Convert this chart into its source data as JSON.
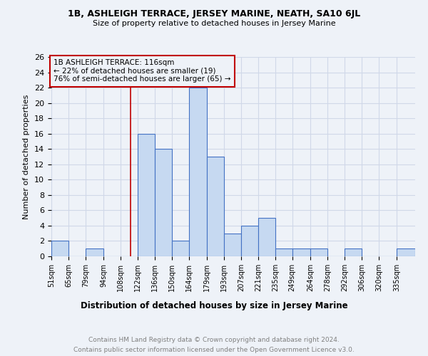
{
  "title": "1B, ASHLEIGH TERRACE, JERSEY MARINE, NEATH, SA10 6JL",
  "subtitle": "Size of property relative to detached houses in Jersey Marine",
  "xlabel": "Distribution of detached houses by size in Jersey Marine",
  "ylabel": "Number of detached properties",
  "footer1": "Contains HM Land Registry data © Crown copyright and database right 2024.",
  "footer2": "Contains public sector information licensed under the Open Government Licence v3.0.",
  "annotation_line1": "1B ASHLEIGH TERRACE: 116sqm",
  "annotation_line2": "← 22% of detached houses are smaller (19)",
  "annotation_line3": "76% of semi-detached houses are larger (65) →",
  "property_size": 116,
  "bin_labels": [
    "51sqm",
    "65sqm",
    "79sqm",
    "94sqm",
    "108sqm",
    "122sqm",
    "136sqm",
    "150sqm",
    "164sqm",
    "179sqm",
    "193sqm",
    "207sqm",
    "221sqm",
    "235sqm",
    "249sqm",
    "264sqm",
    "278sqm",
    "292sqm",
    "306sqm",
    "320sqm",
    "335sqm"
  ],
  "bin_edges": [
    51,
    65,
    79,
    94,
    108,
    122,
    136,
    150,
    164,
    179,
    193,
    207,
    221,
    235,
    249,
    264,
    278,
    292,
    306,
    320,
    335
  ],
  "bar_heights": [
    2,
    0,
    1,
    0,
    0,
    16,
    14,
    2,
    22,
    13,
    3,
    4,
    5,
    1,
    1,
    1,
    0,
    1,
    0,
    0,
    1
  ],
  "bar_color": "#c6d9f1",
  "bar_edge_color": "#4472c4",
  "vline_color": "#c00000",
  "vline_x": 116,
  "annotation_box_color": "#c00000",
  "ylim": [
    0,
    26
  ],
  "yticks": [
    0,
    2,
    4,
    6,
    8,
    10,
    12,
    14,
    16,
    18,
    20,
    22,
    24,
    26
  ],
  "grid_color": "#d0d8e8",
  "background_color": "#eef2f8"
}
